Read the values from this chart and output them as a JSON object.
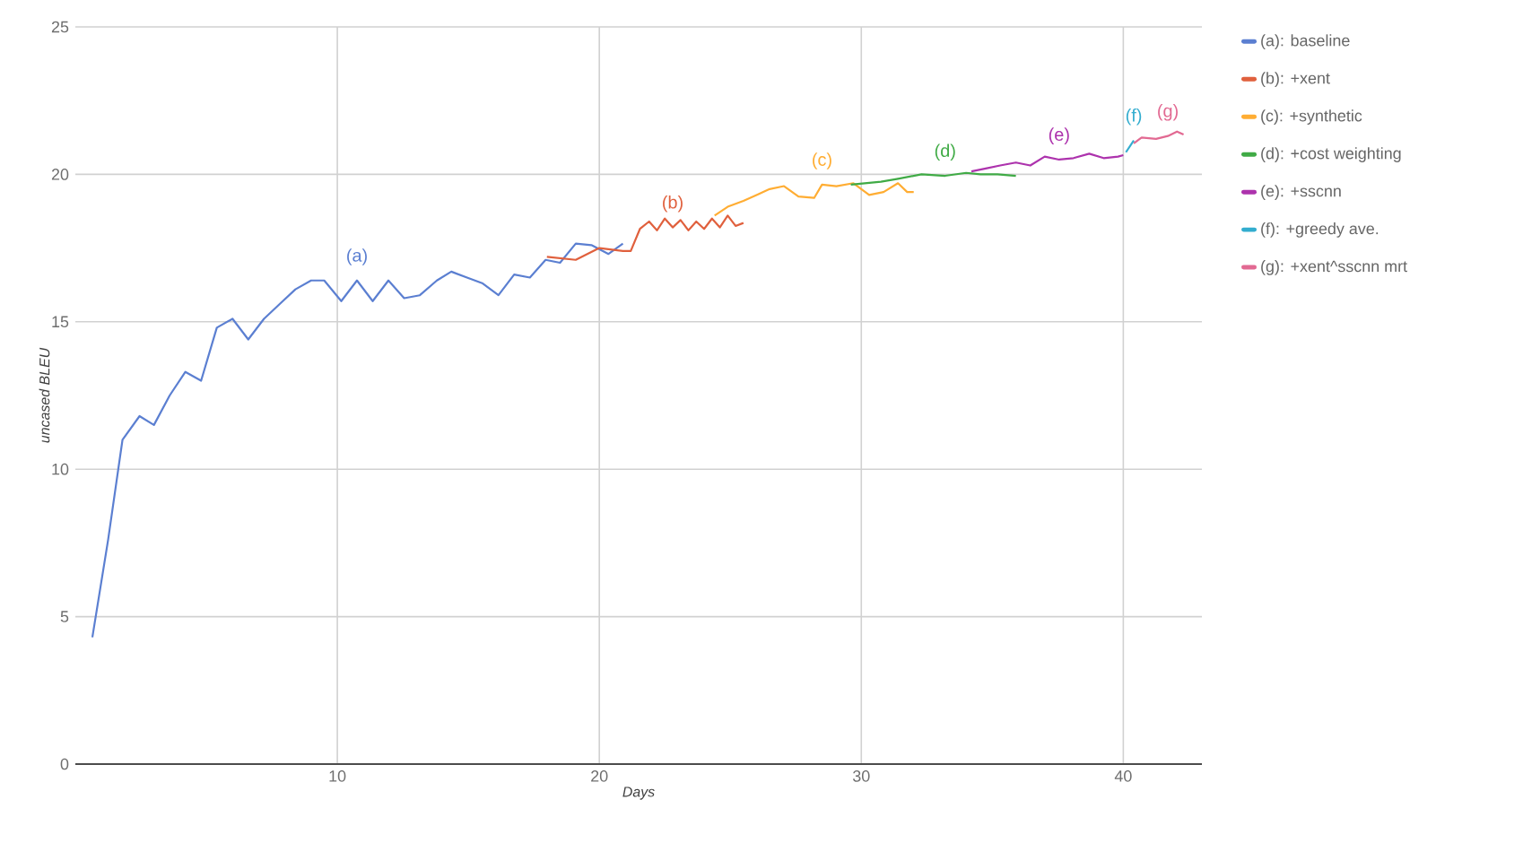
{
  "chart_data": {
    "type": "line",
    "xlabel": "Days",
    "ylabel": "uncased BLEU",
    "xlim": [
      0,
      43
    ],
    "ylim": [
      0,
      25
    ],
    "xticks": [
      10,
      20,
      30,
      40
    ],
    "yticks": [
      0,
      5,
      10,
      15,
      20,
      25
    ],
    "grid": true,
    "legend": "right",
    "marker": "none",
    "line_style": "solid",
    "series": [
      {
        "name": "(a): baseline",
        "color": "#5b7fd1",
        "x": [
          0.65,
          1.25,
          1.8,
          2.45,
          3.0,
          3.6,
          4.2,
          4.8,
          5.4,
          6.0,
          6.6,
          7.2,
          7.8,
          8.4,
          9.0,
          9.5,
          10.15,
          10.75,
          11.35,
          11.95,
          12.55,
          13.15,
          13.8,
          14.35,
          14.95,
          15.55,
          16.15,
          16.75,
          17.35,
          17.95,
          18.5,
          19.1,
          19.7,
          20.35,
          20.9
        ],
        "values": [
          4.3,
          7.6,
          11.0,
          11.8,
          11.5,
          12.5,
          13.3,
          13.0,
          14.8,
          15.1,
          14.4,
          15.1,
          15.6,
          16.1,
          16.4,
          16.4,
          15.7,
          16.4,
          15.7,
          16.4,
          15.8,
          15.9,
          16.4,
          16.7,
          16.5,
          16.3,
          15.9,
          16.6,
          16.5,
          17.1,
          17.0,
          17.65,
          17.6,
          17.3,
          17.65
        ]
      },
      {
        "name": "(b): +xent",
        "color": "#e0603d",
        "x": [
          18.0,
          19.1,
          20.0,
          20.9,
          21.2,
          21.55,
          21.9,
          22.2,
          22.5,
          22.8,
          23.1,
          23.4,
          23.7,
          24.0,
          24.3,
          24.6,
          24.9,
          25.2,
          25.5
        ],
        "values": [
          17.2,
          17.1,
          17.5,
          17.4,
          17.4,
          18.15,
          18.4,
          18.1,
          18.5,
          18.2,
          18.45,
          18.1,
          18.4,
          18.15,
          18.5,
          18.2,
          18.6,
          18.25,
          18.35
        ]
      },
      {
        "name": "(c): +synthetic",
        "color": "#ffad33",
        "x": [
          24.4,
          24.9,
          25.5,
          26.0,
          26.5,
          27.05,
          27.6,
          28.2,
          28.5,
          29.05,
          29.7,
          30.3,
          30.85,
          31.4,
          31.75,
          32.0
        ],
        "values": [
          18.6,
          18.9,
          19.1,
          19.3,
          19.5,
          19.6,
          19.25,
          19.2,
          19.65,
          19.6,
          19.7,
          19.3,
          19.4,
          19.7,
          19.4,
          19.4
        ]
      },
      {
        "name": "(d): +cost weighting",
        "color": "#40ab46",
        "x": [
          29.6,
          30.75,
          31.4,
          32.3,
          33.2,
          34.0,
          34.55,
          35.2,
          35.9
        ],
        "values": [
          19.65,
          19.75,
          19.85,
          20.0,
          19.95,
          20.05,
          20.0,
          20.0,
          19.95
        ]
      },
      {
        "name": "(e): +sscnn",
        "color": "#ad33ad",
        "x": [
          34.2,
          34.75,
          35.3,
          35.9,
          36.45,
          37.0,
          37.55,
          38.1,
          38.7,
          39.25,
          39.8,
          40.0
        ],
        "values": [
          20.1,
          20.2,
          20.3,
          20.4,
          20.3,
          20.6,
          20.5,
          20.55,
          20.7,
          20.55,
          20.6,
          20.65
        ]
      },
      {
        "name": "(f): +greedy ave.",
        "color": "#33adcf",
        "x": [
          40.1,
          40.4
        ],
        "values": [
          20.75,
          21.15
        ]
      },
      {
        "name": "(g): +xent^sscnn mrt",
        "color": "#e26992",
        "x": [
          40.4,
          40.7,
          41.25,
          41.7,
          42.05,
          42.3
        ],
        "values": [
          21.05,
          21.25,
          21.2,
          21.3,
          21.45,
          21.35
        ]
      }
    ],
    "annotations": [
      "(a)",
      "(b)",
      "(c)",
      "(d)",
      "(e)",
      "(f)",
      "(g)"
    ]
  }
}
